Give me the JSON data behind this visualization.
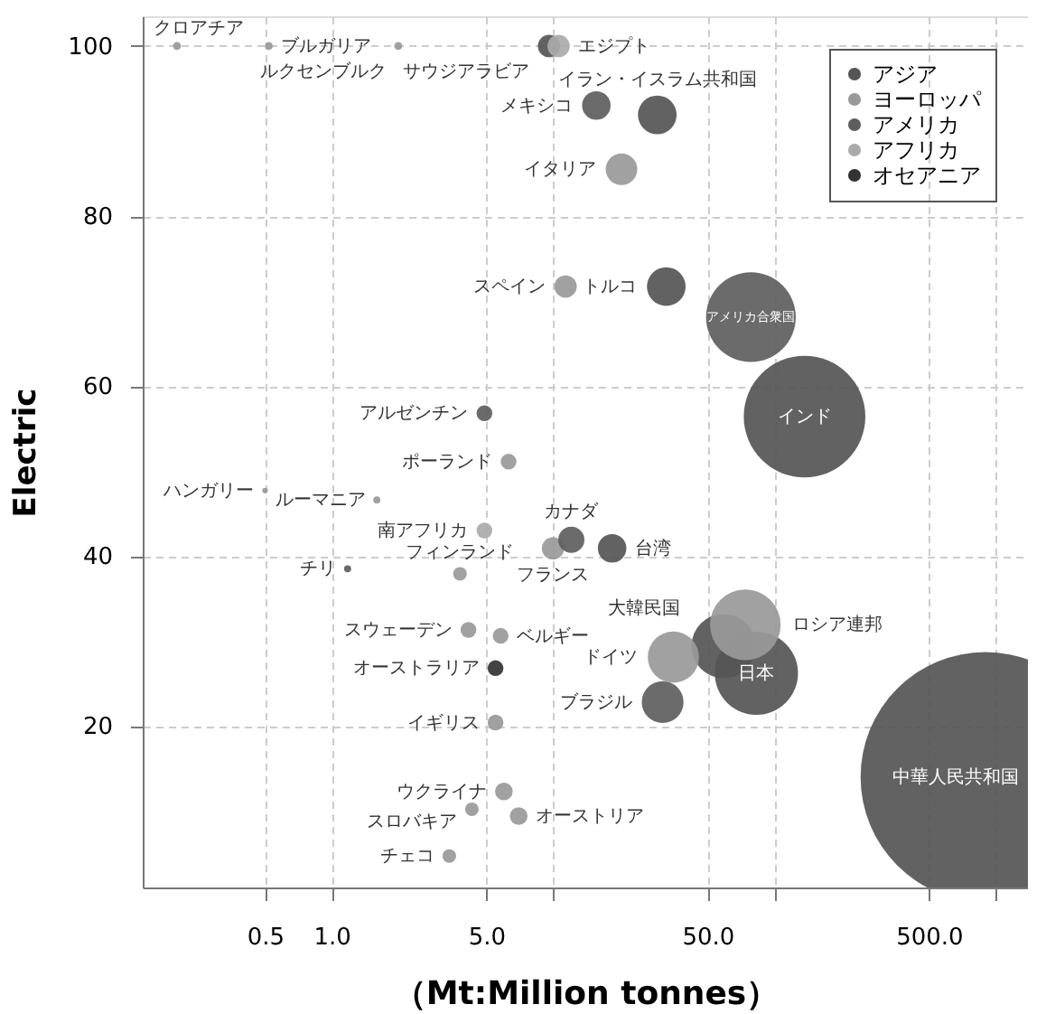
{
  "chart_data": {
    "type": "bubble",
    "xlabel": "（Mt:Million tonnes）",
    "ylabel": "Electric",
    "log": "x",
    "xlim": [
      0.14,
      1400
    ],
    "ylim": [
      1,
      103.5
    ],
    "xticks": [
      0.5,
      {
        "value": 1,
        "label": "1.0"
      },
      {
        "value": 5,
        "label": "5.0"
      },
      {
        "value": 10,
        "label": null
      },
      {
        "value": 50,
        "label": "50.0"
      },
      {
        "value": 100,
        "label": null
      },
      {
        "value": 500,
        "label": "500.0"
      },
      {
        "value": 1000,
        "label": null
      }
    ],
    "yticks": [
      20,
      40,
      60,
      80,
      100
    ],
    "grid": true,
    "legend": "top right",
    "marker": "circle",
    "series": [
      {
        "name": "アジア",
        "color": "#555555",
        "x": [
          9.6,
          29.6,
          32.5,
          137,
          18.5,
          59,
          83,
          900
        ],
        "values": [
          100,
          91.9,
          71.7,
          56.4,
          40.9,
          29.4,
          26.2,
          14
        ],
        "sizes": [
          0.008,
          0.024,
          0.024,
          0.237,
          0.013,
          0.066,
          0.111,
          1
        ]
      },
      {
        "name": "ヨーロッパ",
        "color": "#999999",
        "x": [
          0.2,
          0.52,
          2.0,
          20.4,
          11.4,
          6.3,
          1.6,
          0.5,
          10.0,
          3.8,
          4.15,
          5.8,
          5.5,
          74,
          35,
          6.0,
          4.3,
          7.0,
          3.4
        ],
        "values": [
          100,
          100,
          100,
          85.5,
          71.7,
          51.1,
          46.6,
          47.7,
          40.9,
          37.9,
          31.3,
          30.6,
          20.4,
          31.9,
          28.1,
          12.3,
          10.2,
          9.4,
          4.7
        ],
        "sizes": [
          0.001,
          0.001,
          0.001,
          0.016,
          0.008,
          0.004,
          0.0008,
          0.0005,
          0.008,
          0.003,
          0.004,
          0.004,
          0.004,
          0.08,
          0.042,
          0.005,
          0.003,
          0.005,
          0.003
        ]
      },
      {
        "name": "アメリカ",
        "color": "#5e5e5e",
        "x": [
          15.7,
          78.4,
          4.9,
          12.1,
          1.18,
          31.3
        ],
        "values": [
          93.0,
          68.1,
          56.8,
          41.9,
          38.5,
          22.8
        ],
        "sizes": [
          0.013,
          0.129,
          0.004,
          0.011,
          0.0008,
          0.028
        ]
      },
      {
        "name": "アフリカ",
        "color": "#aaaaaa",
        "x": [
          10.6,
          4.9
        ],
        "values": [
          100,
          43.0
        ],
        "sizes": [
          0.008,
          0.004
        ]
      },
      {
        "name": "オセアニア",
        "color": "#333333",
        "x": [
          5.5
        ],
        "values": [
          26.8
        ],
        "sizes": [
          0.004
        ]
      }
    ],
    "annotations": [
      {
        "text": "サウジアラビア",
        "x": 9.6,
        "y": 100
      },
      {
        "text": "イラン・イスラム共和国",
        "x": 29.6,
        "y": 91.9
      },
      {
        "text": "トルコ",
        "x": 32.5,
        "y": 71.7
      },
      {
        "text": "インド",
        "x": 137,
        "y": 56.4
      },
      {
        "text": "台湾",
        "x": 18.5,
        "y": 40.9
      },
      {
        "text": "大韓民国",
        "x": 59,
        "y": 29.4
      },
      {
        "text": "日本",
        "x": 83,
        "y": 26.2
      },
      {
        "text": "中華人民共和国",
        "x": 900,
        "y": 14
      },
      {
        "text": "クロアチア",
        "x": 0.2,
        "y": 100
      },
      {
        "text": "ブルガリア",
        "x": 0.52,
        "y": 100
      },
      {
        "text": "ルクセンブルク",
        "x": 2.0,
        "y": 100
      },
      {
        "text": "イタリア",
        "x": 20.4,
        "y": 85.5
      },
      {
        "text": "スペイン",
        "x": 11.4,
        "y": 71.7
      },
      {
        "text": "ポーランド",
        "x": 6.3,
        "y": 51.1
      },
      {
        "text": "ルーマニア",
        "x": 1.6,
        "y": 46.6
      },
      {
        "text": "ハンガリー",
        "x": 0.5,
        "y": 47.7
      },
      {
        "text": "フランス",
        "x": 10.0,
        "y": 40.9
      },
      {
        "text": "フィンランド",
        "x": 3.8,
        "y": 37.9
      },
      {
        "text": "スウェーデン",
        "x": 4.15,
        "y": 31.3
      },
      {
        "text": "ベルギー",
        "x": 5.8,
        "y": 30.6
      },
      {
        "text": "イギリス",
        "x": 5.5,
        "y": 20.4
      },
      {
        "text": "ロシア連邦",
        "x": 74,
        "y": 31.9
      },
      {
        "text": "ドイツ",
        "x": 35,
        "y": 28.1
      },
      {
        "text": "ウクライナ",
        "x": 6.0,
        "y": 12.3
      },
      {
        "text": "スロバキア",
        "x": 4.3,
        "y": 10.2
      },
      {
        "text": "オーストリア",
        "x": 7.0,
        "y": 9.4
      },
      {
        "text": "チェコ",
        "x": 3.4,
        "y": 4.7
      },
      {
        "text": "メキシコ",
        "x": 15.7,
        "y": 93.0
      },
      {
        "text": "アメリカ合衆国",
        "x": 78.4,
        "y": 68.1
      },
      {
        "text": "アルゼンチン",
        "x": 4.9,
        "y": 56.8
      },
      {
        "text": "カナダ",
        "x": 12.1,
        "y": 41.9
      },
      {
        "text": "チリ",
        "x": 1.18,
        "y": 38.5
      },
      {
        "text": "ブラジル",
        "x": 31.3,
        "y": 22.8
      },
      {
        "text": "エジプト",
        "x": 10.6,
        "y": 100
      },
      {
        "text": "南アフリカ",
        "x": 4.9,
        "y": 43.0
      },
      {
        "text": "オーストラリア",
        "x": 5.5,
        "y": 26.8
      }
    ]
  }
}
